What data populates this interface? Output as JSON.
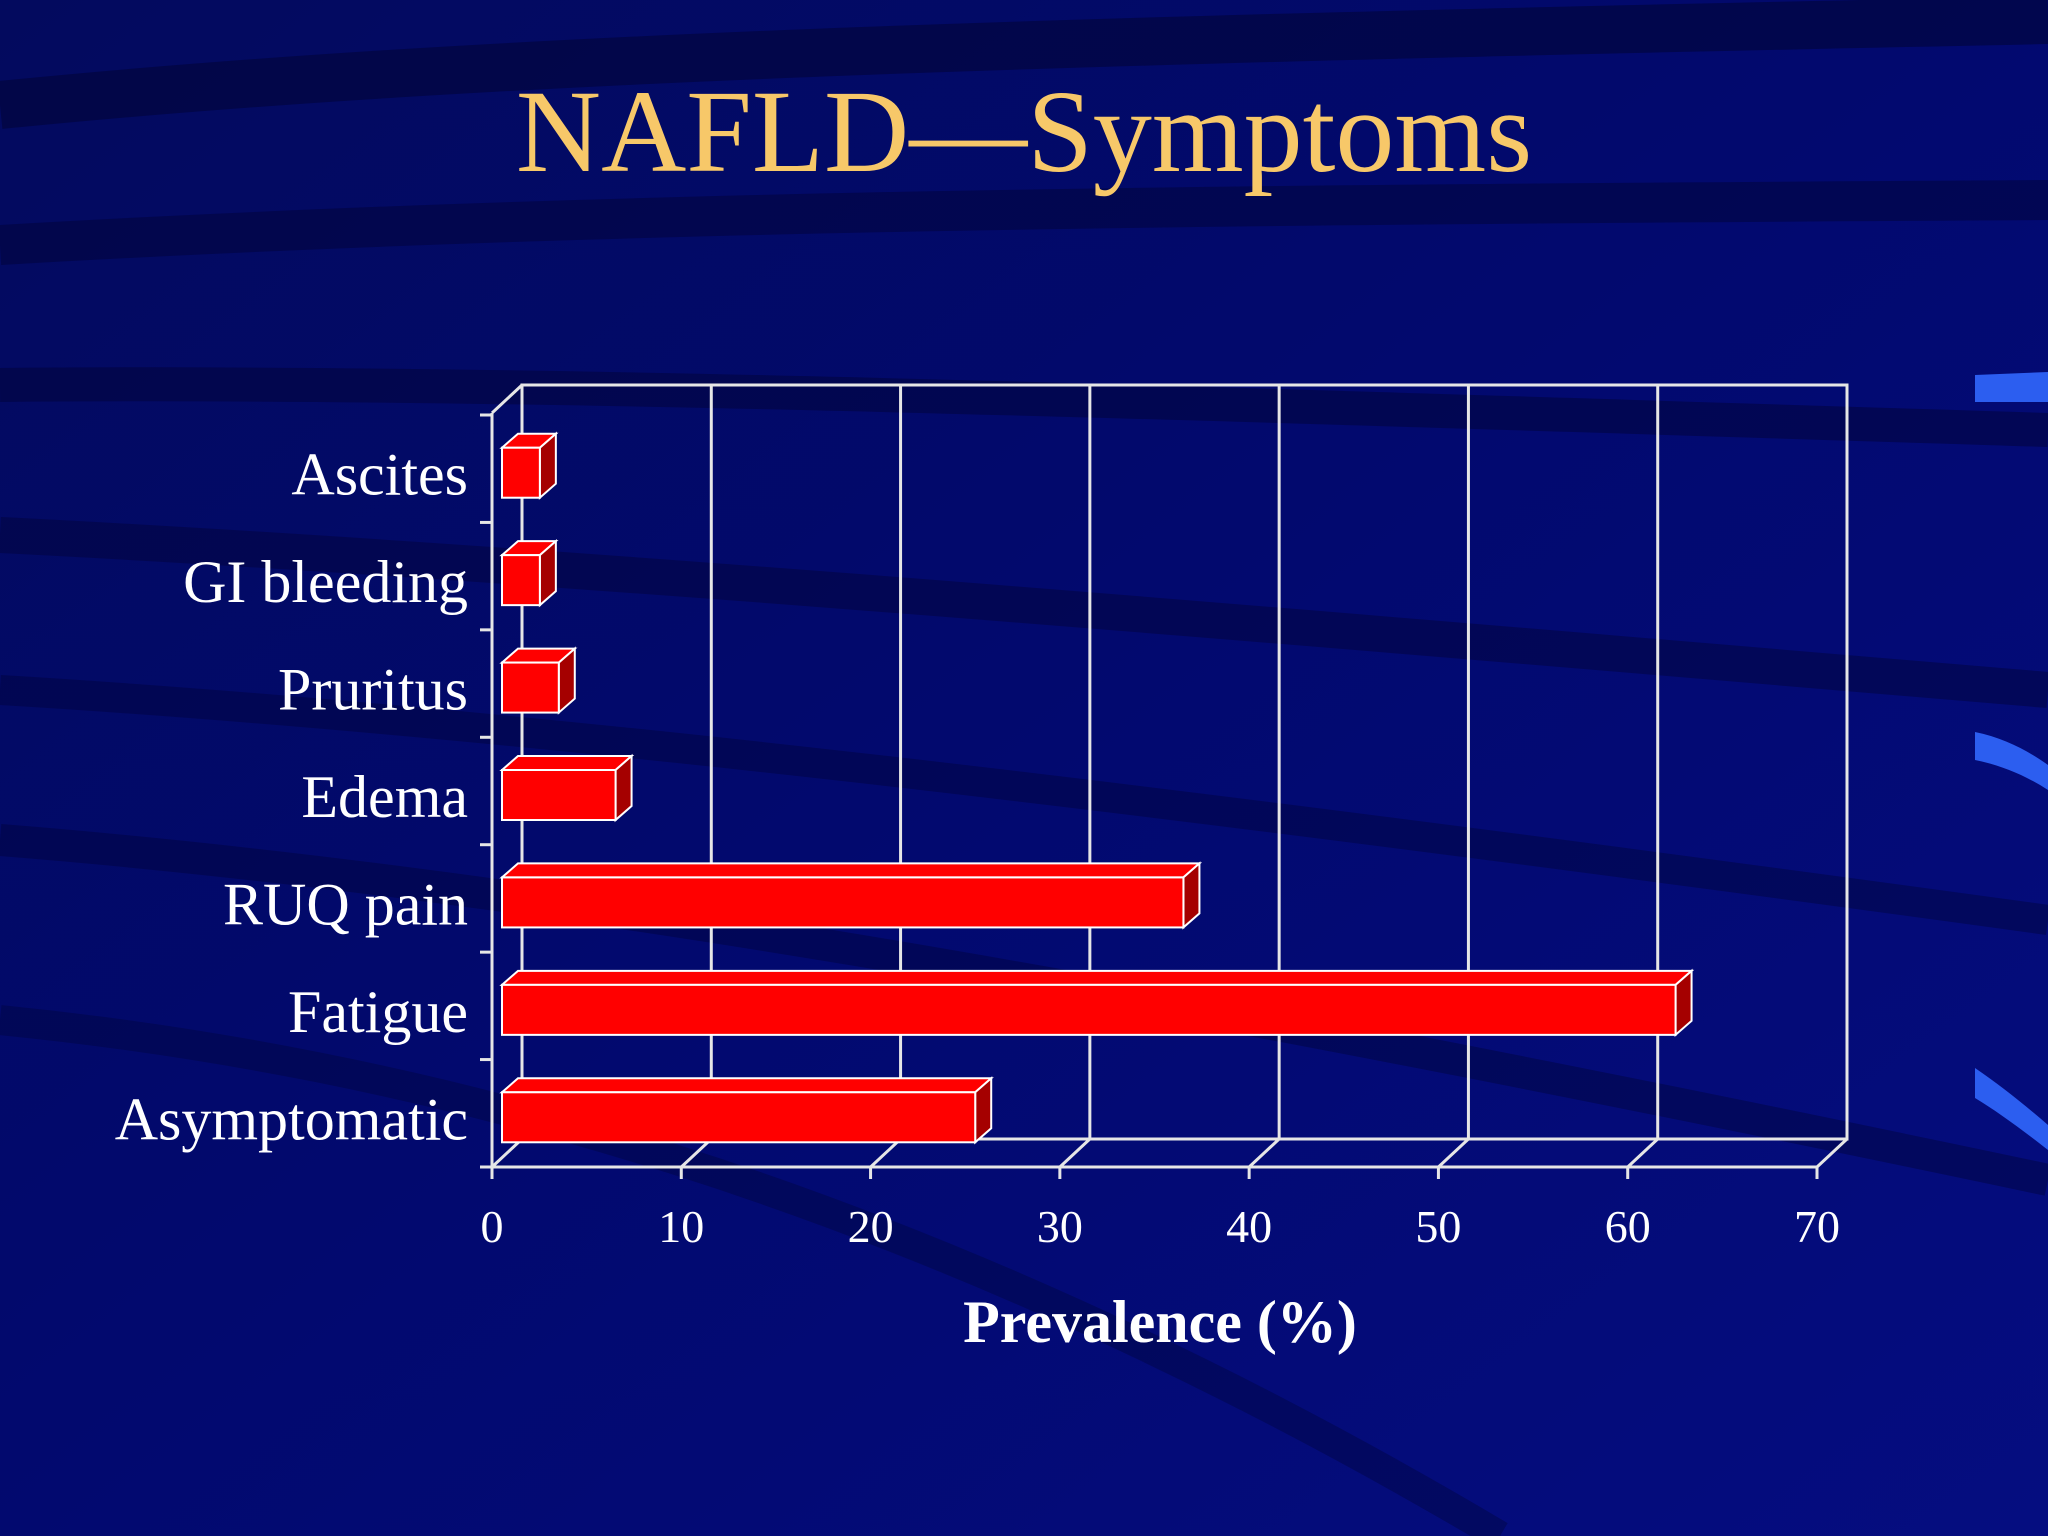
{
  "slide": {
    "title": "NAFLD—Symptoms",
    "colors": {
      "background": "#020a6e",
      "title": "#f7c869",
      "bar": "#ff0000",
      "bar_side": "#a50000",
      "grid": "#e6e6e6",
      "text": "#ffffff"
    }
  },
  "chart_data": {
    "type": "bar",
    "orientation": "horizontal",
    "style": "3d",
    "title": "NAFLD—Symptoms",
    "xlabel": "Prevalence (%)",
    "ylabel": "",
    "xlim": [
      0,
      70
    ],
    "xticks": [
      0,
      10,
      20,
      30,
      40,
      50,
      60,
      70
    ],
    "grid": true,
    "categories": [
      "Ascites",
      "GI bleeding",
      "Pruritus",
      "Edema",
      "RUQ pain",
      "Fatigue",
      "Asymptomatic"
    ],
    "values": [
      2,
      2,
      3,
      6,
      36,
      62,
      25
    ]
  }
}
